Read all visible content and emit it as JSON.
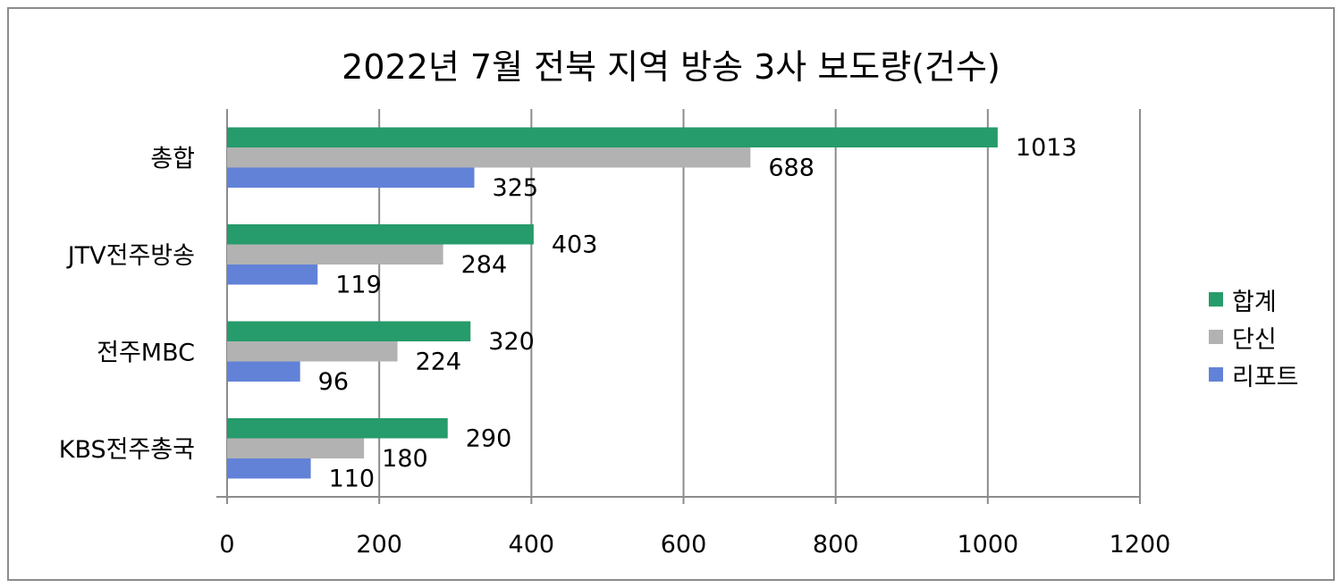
{
  "chart_data": {
    "type": "bar",
    "orientation": "horizontal",
    "title": "2022년 7월 전북 지역 방송 3사 보도량(건수)",
    "categories": [
      "총합",
      "JTV전주방송",
      "전주MBC",
      "KBS전주총국"
    ],
    "series": [
      {
        "name": "합계",
        "values": [
          1013,
          403,
          320,
          290
        ],
        "color": "#269b6b"
      },
      {
        "name": "단신",
        "values": [
          688,
          284,
          224,
          180
        ],
        "color": "#b2b2b2"
      },
      {
        "name": "리포트",
        "values": [
          325,
          119,
          96,
          110
        ],
        "color": "#6282d8"
      }
    ],
    "xlim": [
      0,
      1200
    ],
    "xticks": [
      "0",
      "200",
      "400",
      "600",
      "800",
      "1000",
      "1200"
    ],
    "grid": true,
    "legend": "right"
  }
}
